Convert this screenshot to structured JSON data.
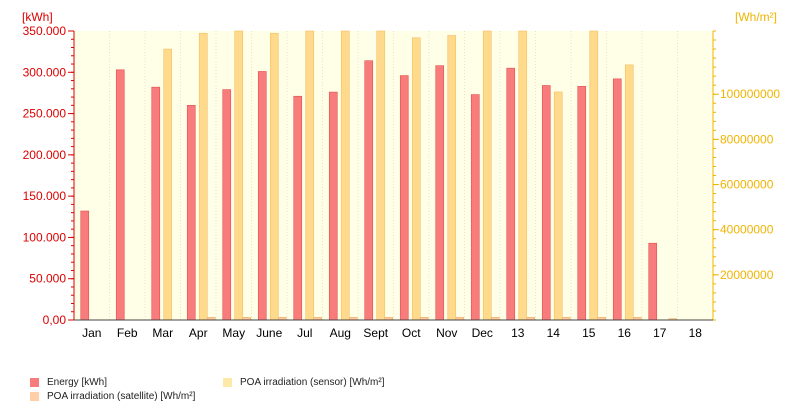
{
  "chart_data": {
    "type": "bar",
    "categories": [
      "Jan",
      "Feb",
      "Mar",
      "Apr",
      "May",
      "June",
      "Jul",
      "Aug",
      "Sept",
      "Oct",
      "Nov",
      "Dec",
      "13",
      "14",
      "15",
      "16",
      "17",
      "18"
    ],
    "left_axis": {
      "unit_label": "[kWh]",
      "ylim": [
        0,
        350000
      ],
      "ticks": [
        0,
        50000,
        100000,
        150000,
        200000,
        250000,
        300000,
        350000
      ],
      "tick_labels": [
        "0,00",
        "50.000",
        "100.000",
        "150.000",
        "200.000",
        "250.000",
        "300.000",
        "350.000"
      ]
    },
    "right_axis": {
      "unit_label": "[Wh/m²]",
      "ylim": [
        0,
        128000000
      ],
      "ticks": [
        20000000,
        40000000,
        60000000,
        80000000,
        100000000
      ],
      "tick_labels": [
        "20000000",
        "40000000",
        "60000000",
        "80000000",
        "100000000"
      ]
    },
    "series": [
      {
        "name": "Energy [kWh]",
        "axis": "left",
        "color": "#f87c7c",
        "values": [
          132000,
          303000,
          282000,
          260000,
          279000,
          301000,
          271000,
          276000,
          314000,
          296000,
          308000,
          273000,
          305000,
          284000,
          283000,
          292000,
          93000,
          null
        ]
      },
      {
        "name": "POA irradiation (sensor) [Wh/m²]",
        "axis": "right",
        "color": "#ffd98c",
        "values": [
          null,
          null,
          120000000,
          127000000,
          128000000,
          127000000,
          128000000,
          128000000,
          128000000,
          125000000,
          126000000,
          128000000,
          128000000,
          101000000,
          128000000,
          113000000,
          null,
          null
        ]
      },
      {
        "name": "POA irradiation (satellite) [Wh/m²]",
        "axis": "right",
        "color": "#ffc99a",
        "values": [
          null,
          null,
          null,
          1200000,
          1200000,
          1200000,
          1200000,
          1200000,
          1200000,
          1200000,
          1200000,
          1200000,
          1200000,
          1200000,
          1200000,
          1200000,
          600000,
          null
        ]
      }
    ],
    "grid": "vertical dotted lines at category boundaries",
    "legend_position": "bottom-left"
  },
  "colors": {
    "left_axis": "#dd0000",
    "right_axis": "#f0b400",
    "background": "#ffffe8",
    "grid": "#e4e4c8"
  }
}
